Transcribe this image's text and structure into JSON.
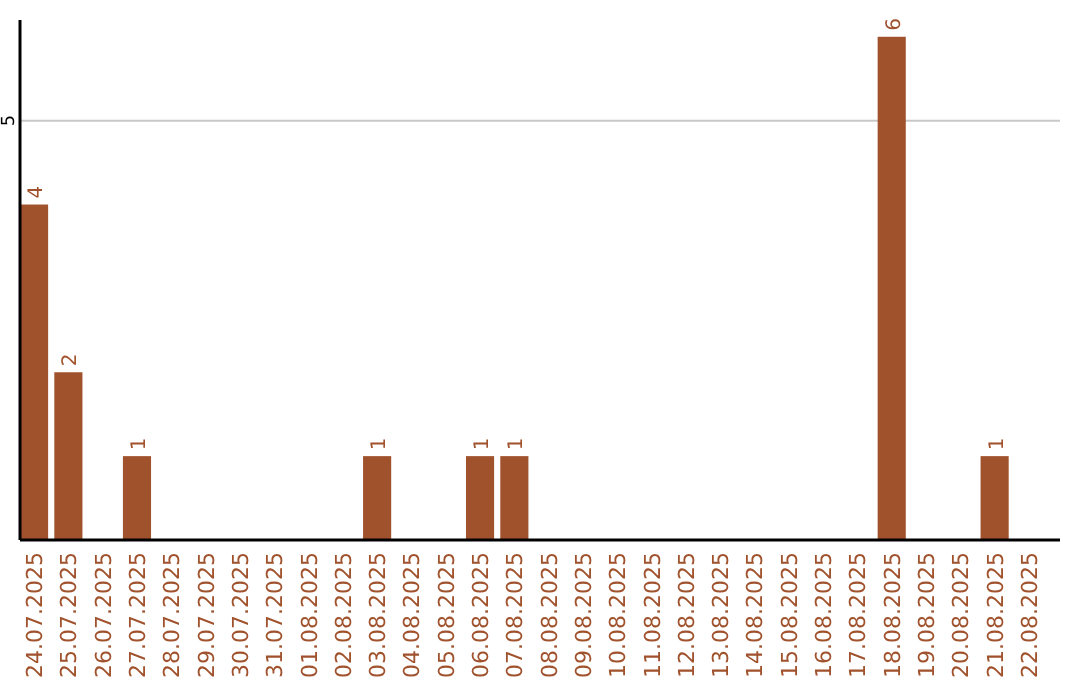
{
  "chart_data": {
    "type": "bar",
    "categories": [
      "24.07.2025",
      "25.07.2025",
      "26.07.2025",
      "27.07.2025",
      "28.07.2025",
      "29.07.2025",
      "30.07.2025",
      "31.07.2025",
      "01.08.2025",
      "02.08.2025",
      "03.08.2025",
      "04.08.2025",
      "05.08.2025",
      "06.08.2025",
      "07.08.2025",
      "08.08.2025",
      "09.08.2025",
      "10.08.2025",
      "11.08.2025",
      "12.08.2025",
      "13.08.2025",
      "14.08.2025",
      "15.08.2025",
      "16.08.2025",
      "17.08.2025",
      "18.08.2025",
      "19.08.2025",
      "20.08.2025",
      "21.08.2025",
      "22.08.2025"
    ],
    "values": [
      4,
      2,
      0,
      1,
      0,
      0,
      0,
      0,
      0,
      0,
      1,
      0,
      0,
      1,
      1,
      0,
      0,
      0,
      0,
      0,
      0,
      0,
      0,
      0,
      0,
      6,
      0,
      0,
      1,
      0
    ],
    "value_labels": [
      "4",
      "2",
      null,
      "1",
      null,
      null,
      null,
      null,
      null,
      null,
      "1",
      null,
      null,
      "1",
      "1",
      null,
      null,
      null,
      null,
      null,
      null,
      null,
      null,
      null,
      null,
      "6",
      null,
      null,
      "1",
      null
    ],
    "color": "#a0522d",
    "ylim": [
      0,
      6.2
    ],
    "yticks": [
      5
    ],
    "grid": "y"
  }
}
